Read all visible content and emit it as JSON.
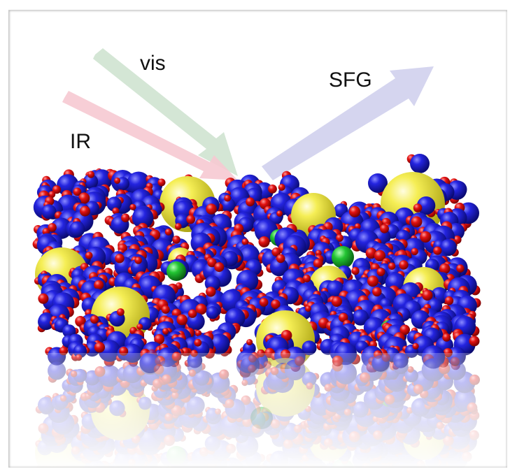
{
  "labels": {
    "vis": "vis",
    "sfg": "SFG",
    "ir": "IR"
  },
  "colors": {
    "vis_beam": "#cfe3d0",
    "ir_beam": "#f6c9d2",
    "sfg_beam": "#d3d3ee",
    "oxygen_blue": "#1a1adb",
    "hydrogen_red": "#e01010",
    "cation_yellow": "#f2ea3a",
    "anion_green": "#22c433",
    "background": "#ffffff"
  },
  "components": [
    "beam-vis",
    "beam-ir",
    "beam-sfg",
    "water-molecules",
    "yellow-ions",
    "green-ions",
    "reflection"
  ]
}
